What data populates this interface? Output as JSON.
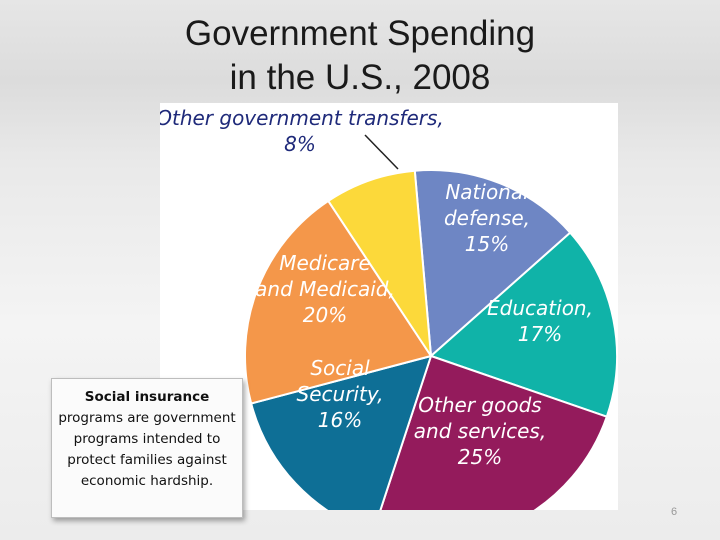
{
  "slide": {
    "title_line1": "Government Spending",
    "title_line2": "in the U.S., 2008",
    "page_number": "6"
  },
  "callout": {
    "term": "Social insurance",
    "definition": "programs are government programs intended to protect families against economic hardship."
  },
  "chart_data": {
    "type": "pie",
    "title": "Government Spending in the U.S., 2008",
    "unit": "%",
    "slices": [
      {
        "name": "National defense",
        "value": 15,
        "color": "#6e86c4",
        "lines": [
          "National",
          "defense,",
          "15%"
        ]
      },
      {
        "name": "Education",
        "value": 17,
        "color": "#10b3a8",
        "lines": [
          "Education,",
          "17%"
        ]
      },
      {
        "name": "Other goods and services",
        "value": 25,
        "color": "#941b5c",
        "lines": [
          "Other goods",
          "and services,",
          "25%"
        ]
      },
      {
        "name": "Social Security",
        "value": 16,
        "color": "#0e6f96",
        "lines": [
          "Social",
          "Security,",
          "16%"
        ]
      },
      {
        "name": "Medicare and Medicaid",
        "value": 20,
        "color": "#f4974a",
        "lines": [
          "Medicare",
          "and Medicaid,",
          "20%"
        ]
      },
      {
        "name": "Other government transfers",
        "value": 8,
        "color": "#fcd93a",
        "lines": [
          "Other government transfers,",
          "8%"
        ]
      }
    ]
  }
}
